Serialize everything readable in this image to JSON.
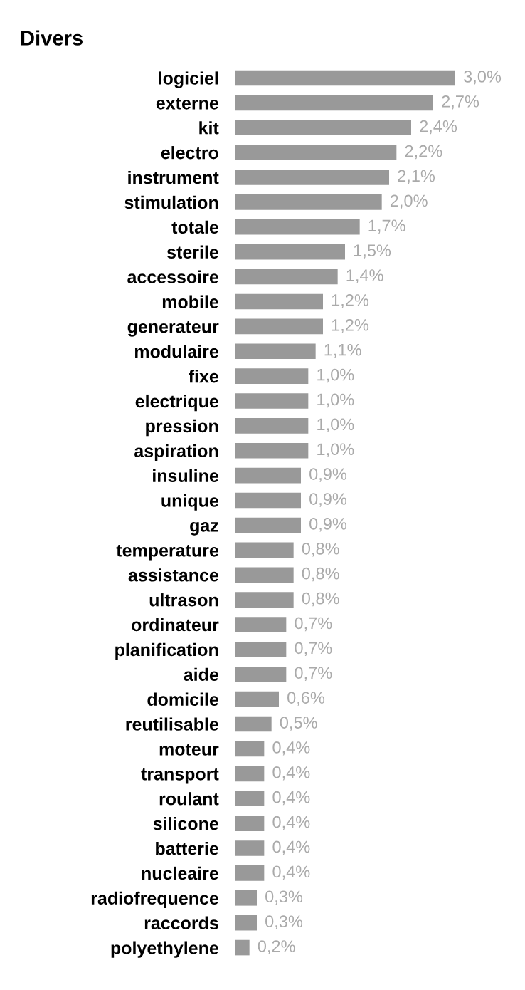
{
  "chart_data": {
    "type": "bar",
    "orientation": "horizontal",
    "title": "Divers",
    "categories": [
      "logiciel",
      "externe",
      "kit",
      "electro",
      "instrument",
      "stimulation",
      "totale",
      "sterile",
      "accessoire",
      "mobile",
      "generateur",
      "modulaire",
      "fixe",
      "electrique",
      "pression",
      "aspiration",
      "insuline",
      "unique",
      "gaz",
      "temperature",
      "assistance",
      "ultrason",
      "ordinateur",
      "planification",
      "aide",
      "domicile",
      "reutilisable",
      "moteur",
      "transport",
      "roulant",
      "silicone",
      "batterie",
      "nucleaire",
      "radiofrequence",
      "raccords",
      "polyethylene"
    ],
    "values": [
      3.0,
      2.7,
      2.4,
      2.2,
      2.1,
      2.0,
      1.7,
      1.5,
      1.4,
      1.2,
      1.2,
      1.1,
      1.0,
      1.0,
      1.0,
      1.0,
      0.9,
      0.9,
      0.9,
      0.8,
      0.8,
      0.8,
      0.7,
      0.7,
      0.7,
      0.6,
      0.5,
      0.4,
      0.4,
      0.4,
      0.4,
      0.4,
      0.4,
      0.3,
      0.3,
      0.2
    ],
    "value_labels": [
      "3,0%",
      "2,7%",
      "2,4%",
      "2,2%",
      "2,1%",
      "2,0%",
      "1,7%",
      "1,5%",
      "1,4%",
      "1,2%",
      "1,2%",
      "1,1%",
      "1,0%",
      "1,0%",
      "1,0%",
      "1,0%",
      "0,9%",
      "0,9%",
      "0,9%",
      "0,8%",
      "0,8%",
      "0,8%",
      "0,7%",
      "0,7%",
      "0,7%",
      "0,6%",
      "0,5%",
      "0,4%",
      "0,4%",
      "0,4%",
      "0,4%",
      "0,4%",
      "0,4%",
      "0,3%",
      "0,3%",
      "0,2%"
    ],
    "color": "#999999",
    "grid": false,
    "legend": false
  }
}
